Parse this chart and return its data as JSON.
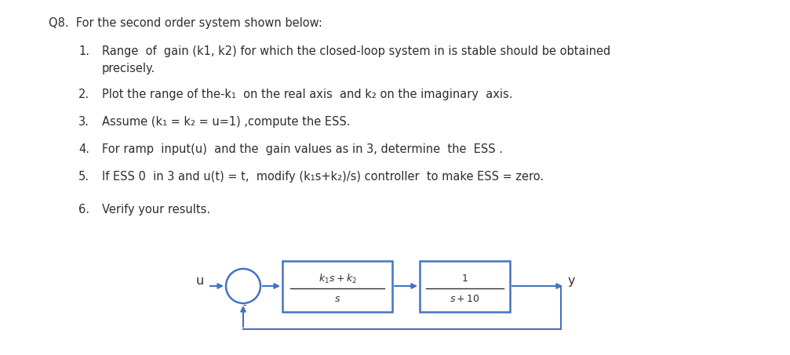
{
  "title": "Q8.  For the second order system shown below:",
  "item1_num": "1.",
  "item1_text": "Range  of  gain (k1, k2) for which the closed-loop system in is stable should be obtained",
  "item1_cont": "precisely.",
  "item2_num": "2.",
  "item2_text": "Plot the range of the-k₁  on the real axis  and k₂ on the imaginary  axis.",
  "item3_num": "3.",
  "item3_text": "Assume (k₁ = k₂ = u=1) ,compute the ESS.",
  "item4_num": "4.",
  "item4_text": "For ramp  input(u)  and the  gain values as in 3, determine  the  ESS .",
  "item5_num": "5.",
  "item5_text": "If ESS ⁠0  in 3 and u(t) = t,  modify (k₁s+k₂)/s) controller  to make ESS = zero.",
  "item6_num": "6.",
  "item6_text": "Verify your results.",
  "bg_color": "#ffffff",
  "text_color": "#2e2e2e",
  "block_color": "#4472c4",
  "font_size": 10.5,
  "diagram_label_u": "u",
  "diagram_label_y": "y",
  "diagram_label_minus": "-",
  "block1_num": "k₁s + k₂",
  "block1_den": "s",
  "block2_num": "1",
  "block2_den": "s+10"
}
